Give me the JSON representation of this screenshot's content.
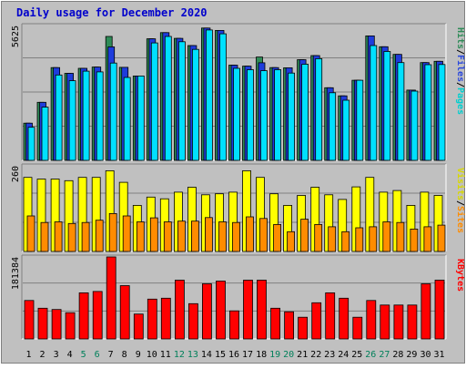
{
  "chart_data": [
    {
      "type": "bar",
      "title": "Daily usage for December 2020",
      "y_max_label": "5625",
      "ylim": [
        0,
        5625
      ],
      "grid": true,
      "legend": "right",
      "categories": [
        "1",
        "2",
        "3",
        "4",
        "5",
        "6",
        "7",
        "8",
        "9",
        "10",
        "11",
        "12",
        "13",
        "14",
        "15",
        "16",
        "17",
        "18",
        "19",
        "20",
        "21",
        "22",
        "23",
        "24",
        "25",
        "26",
        "27",
        "28",
        "29",
        "30",
        "31"
      ],
      "weekend_days": [
        "5",
        "6",
        "12",
        "13",
        "19",
        "20",
        "26",
        "27"
      ],
      "series": [
        {
          "name": "Hits",
          "color": "#2e8b57",
          "values": [
            1550,
            2420,
            3870,
            3630,
            3840,
            3890,
            5170,
            3880,
            3520,
            5070,
            5330,
            5090,
            4790,
            5520,
            5420,
            3970,
            3930,
            4310,
            3870,
            3860,
            4200,
            4370,
            3030,
            2690,
            3340,
            5190,
            4740,
            4420,
            2930,
            4080,
            4130
          ]
        },
        {
          "name": "Files",
          "color": "#1e3cdc",
          "values": [
            1550,
            2420,
            3870,
            3630,
            3840,
            3890,
            4730,
            3880,
            3520,
            5070,
            5330,
            5090,
            4790,
            5520,
            5420,
            3970,
            3930,
            4070,
            3870,
            3860,
            4200,
            4370,
            3030,
            2690,
            3340,
            5190,
            4740,
            4420,
            2930,
            4080,
            4130
          ]
        },
        {
          "name": "Pages",
          "color": "#00e0ff",
          "values": [
            1380,
            2220,
            3560,
            3320,
            3720,
            3690,
            4060,
            3460,
            3520,
            4900,
            5170,
            4950,
            4630,
            5440,
            5280,
            3840,
            3780,
            3740,
            3780,
            3640,
            4010,
            4240,
            2820,
            2510,
            3340,
            4790,
            4540,
            4080,
            2890,
            3990,
            4000
          ]
        }
      ],
      "y_axis_legend": [
        {
          "name": "Pages",
          "color": "#00cfcf"
        },
        {
          "name": "Files",
          "color": "#2a48dc"
        },
        {
          "name": "Hits",
          "color": "#2e8b57"
        }
      ]
    },
    {
      "type": "bar",
      "y_max_label": "260",
      "ylim": [
        0,
        260
      ],
      "grid": true,
      "legend": "right",
      "categories": [
        "1",
        "2",
        "3",
        "4",
        "5",
        "6",
        "7",
        "8",
        "9",
        "10",
        "11",
        "12",
        "13",
        "14",
        "15",
        "16",
        "17",
        "18",
        "19",
        "20",
        "21",
        "22",
        "23",
        "24",
        "25",
        "26",
        "27",
        "28",
        "29",
        "30",
        "31"
      ],
      "series": [
        {
          "name": "Visits",
          "color": "#ffff00",
          "values": [
            225,
            220,
            220,
            215,
            225,
            225,
            245,
            210,
            140,
            165,
            160,
            180,
            195,
            172,
            175,
            180,
            245,
            225,
            175,
            140,
            170,
            195,
            172,
            158,
            196,
            225,
            180,
            185,
            140,
            180,
            170
          ]
        },
        {
          "name": "Sites",
          "color": "#ff8c00",
          "values": [
            108,
            88,
            90,
            85,
            88,
            95,
            115,
            108,
            90,
            102,
            90,
            92,
            92,
            103,
            90,
            88,
            105,
            100,
            82,
            60,
            98,
            82,
            75,
            60,
            72,
            75,
            90,
            88,
            68,
            75,
            80
          ]
        }
      ],
      "y_axis_legend": [
        {
          "name": "Sites",
          "color": "#ff8c00"
        },
        {
          "name": "Visits",
          "color": "#d8d800"
        }
      ]
    },
    {
      "type": "bar",
      "y_max_label": "181384",
      "ylim": [
        0,
        181384
      ],
      "grid": true,
      "legend": "right",
      "categories": [
        "1",
        "2",
        "3",
        "4",
        "5",
        "6",
        "7",
        "8",
        "9",
        "10",
        "11",
        "12",
        "13",
        "14",
        "15",
        "16",
        "17",
        "18",
        "19",
        "20",
        "21",
        "22",
        "23",
        "24",
        "25",
        "26",
        "27",
        "28",
        "29",
        "30",
        "31"
      ],
      "series": [
        {
          "name": "KBytes",
          "color": "#ff0000",
          "values": [
            85000,
            68000,
            65000,
            58000,
            102000,
            105000,
            181384,
            118000,
            55000,
            88000,
            90000,
            130000,
            78000,
            122000,
            128000,
            62000,
            130000,
            130000,
            68000,
            60000,
            48000,
            80000,
            102000,
            90000,
            48000,
            85000,
            75000,
            75000,
            75000,
            122000,
            130000
          ]
        }
      ],
      "y_axis_legend": [
        {
          "name": "KBytes",
          "color": "#ff0000"
        }
      ]
    }
  ]
}
